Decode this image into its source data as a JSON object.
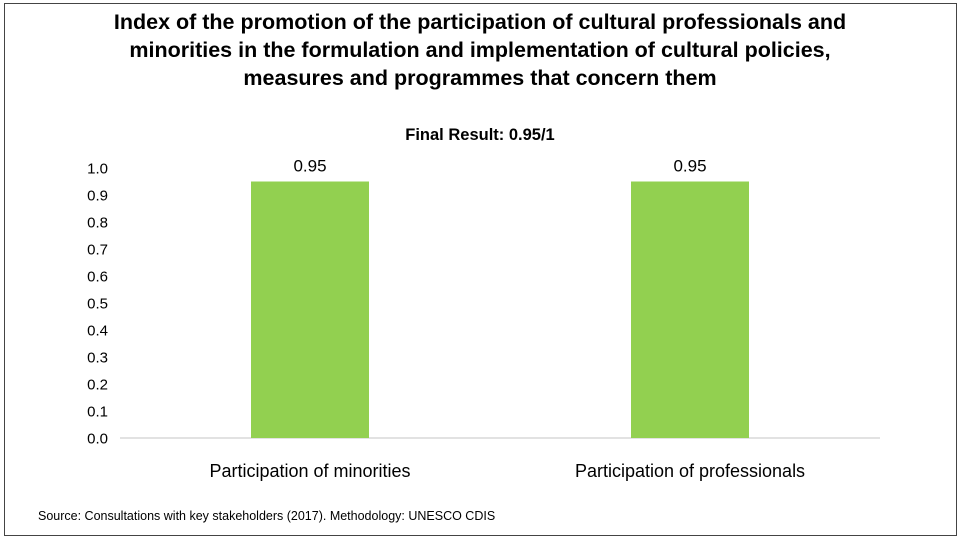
{
  "chart_data": {
    "type": "bar",
    "title": "Index of the promotion of the participation of cultural professionals and minorities in the formulation and implementation of cultural policies, measures and programmes that concern them",
    "subtitle": "Final Result: 0.95/1",
    "categories": [
      "Participation of minorities",
      "Participation of professionals"
    ],
    "values": [
      0.95,
      0.95
    ],
    "data_labels": [
      "0.95",
      "0.95"
    ],
    "ylim": [
      0,
      1.0
    ],
    "y_ticks": [
      "0.0",
      "0.1",
      "0.2",
      "0.3",
      "0.4",
      "0.5",
      "0.6",
      "0.7",
      "0.8",
      "0.9",
      "1.0"
    ],
    "xlabel": "",
    "ylabel": "",
    "grid": false,
    "bar_color": "#92d050",
    "source": "Source: Consultations with key stakeholders (2017). Methodology: UNESCO CDIS"
  }
}
